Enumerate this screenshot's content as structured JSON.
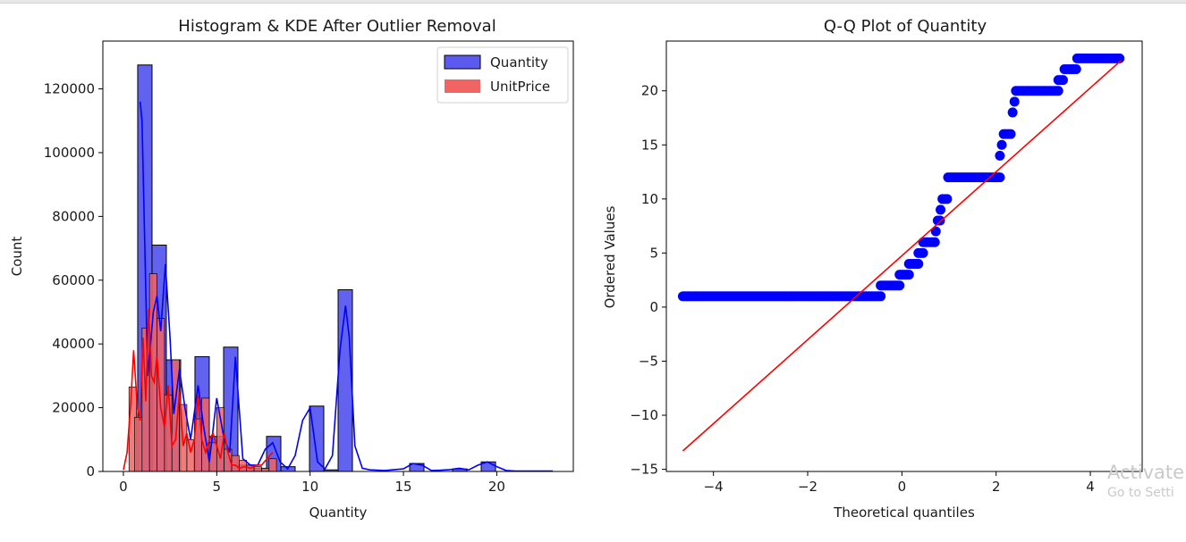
{
  "colors": {
    "quantity_fill": "#5a5af0",
    "quantity_line": "#0000ff",
    "unitprice_fill": "#f06464",
    "unitprice_line": "#ff0000",
    "qq_points": "#0000ff",
    "qq_line": "#ff0000"
  },
  "watermark": {
    "line1": "Activate",
    "line2": "Go to Setti"
  },
  "chart_data": [
    {
      "type": "bar",
      "subtype": "histogram+kde",
      "title": "Histogram & KDE After Outlier Removal",
      "xlabel": "Quantity",
      "ylabel": "Count",
      "xlim": [
        -1.1,
        24.1
      ],
      "ylim": [
        0,
        135000
      ],
      "xticks": [
        0,
        5,
        10,
        15,
        20
      ],
      "yticks": [
        0,
        20000,
        40000,
        60000,
        80000,
        100000,
        120000
      ],
      "legend": {
        "position": "top-right",
        "entries": [
          "Quantity",
          "UnitPrice"
        ]
      },
      "bin_width": 0.767,
      "series": [
        {
          "name": "Quantity",
          "color": "#5a5af0",
          "bins": [
            {
              "x": 0.767,
              "count": 127500
            },
            {
              "x": 1.533,
              "count": 71000
            },
            {
              "x": 2.3,
              "count": 35000
            },
            {
              "x": 3.833,
              "count": 36000
            },
            {
              "x": 4.6,
              "count": 11000
            },
            {
              "x": 5.367,
              "count": 39000
            },
            {
              "x": 6.133,
              "count": 2000
            },
            {
              "x": 6.9,
              "count": 1000
            },
            {
              "x": 7.667,
              "count": 11000
            },
            {
              "x": 8.433,
              "count": 1500
            },
            {
              "x": 9.967,
              "count": 20500
            },
            {
              "x": 10.733,
              "count": 500
            },
            {
              "x": 11.5,
              "count": 57000
            },
            {
              "x": 15.333,
              "count": 2500
            },
            {
              "x": 17.633,
              "count": 800
            },
            {
              "x": 19.167,
              "count": 3000
            }
          ],
          "kde": {
            "x": [
              0.9,
              1.0,
              1.3,
              1.6,
              1.8,
              2.0,
              2.25,
              2.5,
              2.7,
              3.0,
              3.3,
              3.6,
              4.0,
              4.3,
              4.6,
              5.0,
              5.4,
              5.7,
              6.0,
              6.4,
              6.8,
              7.2,
              7.6,
              8.0,
              8.4,
              8.8,
              9.2,
              9.6,
              10.0,
              10.4,
              10.8,
              11.2,
              11.6,
              11.9,
              12.1,
              12.4,
              12.8,
              13.2,
              14.0,
              15.0,
              15.5,
              16.0,
              16.5,
              17.0,
              17.5,
              18.0,
              18.5,
              19.0,
              19.5,
              20.0,
              20.5,
              21.0,
              22.0,
              23.0
            ],
            "y": [
              116000,
              110000,
              30000,
              50000,
              55000,
              44000,
              65000,
              42000,
              18000,
              32000,
              20000,
              10000,
              27000,
              14000,
              3000,
              23000,
              10000,
              6000,
              36000,
              4000,
              2000,
              2000,
              7000,
              9000,
              3000,
              800,
              5000,
              16000,
              20000,
              3000,
              800,
              5000,
              38000,
              52000,
              42000,
              8000,
              1000,
              500,
              300,
              800,
              2500,
              2000,
              300,
              400,
              600,
              1000,
              500,
              2000,
              3000,
              1500,
              300,
              100,
              100,
              100
            ]
          }
        },
        {
          "name": "UnitPrice",
          "color": "#f06464",
          "bins": [
            {
              "x": 0.3,
              "count": 26500
            },
            {
              "x": 0.6,
              "count": 17000
            },
            {
              "x": 1.0,
              "count": 45000
            },
            {
              "x": 1.4,
              "count": 62000
            },
            {
              "x": 1.8,
              "count": 48000
            },
            {
              "x": 2.2,
              "count": 24000
            },
            {
              "x": 2.6,
              "count": 35000
            },
            {
              "x": 3.0,
              "count": 21000
            },
            {
              "x": 3.4,
              "count": 10000
            },
            {
              "x": 3.8,
              "count": 16500
            },
            {
              "x": 4.2,
              "count": 23000
            },
            {
              "x": 4.6,
              "count": 9000
            },
            {
              "x": 5.0,
              "count": 20000
            },
            {
              "x": 5.4,
              "count": 7000
            },
            {
              "x": 5.8,
              "count": 5000
            },
            {
              "x": 6.2,
              "count": 3500
            },
            {
              "x": 6.6,
              "count": 2000
            },
            {
              "x": 7.0,
              "count": 1500
            },
            {
              "x": 7.4,
              "count": 1000
            },
            {
              "x": 7.8,
              "count": 4000
            }
          ],
          "kde": {
            "x": [
              0.0,
              0.2,
              0.4,
              0.55,
              0.75,
              0.9,
              1.05,
              1.2,
              1.35,
              1.5,
              1.65,
              1.8,
              2.0,
              2.2,
              2.4,
              2.6,
              2.8,
              3.0,
              3.2,
              3.4,
              3.6,
              3.8,
              4.0,
              4.2,
              4.4,
              4.6,
              4.8,
              5.0,
              5.2,
              5.4,
              5.6,
              5.8,
              6.0,
              6.2,
              6.5,
              6.8,
              7.1,
              7.4,
              7.7,
              8.0
            ],
            "y": [
              500,
              6000,
              22000,
              38000,
              20000,
              16000,
              42000,
              22000,
              51000,
              30000,
              28000,
              36000,
              20000,
              14000,
              27000,
              8000,
              10000,
              25000,
              8000,
              12000,
              6000,
              10000,
              24000,
              10000,
              6000,
              10000,
              12000,
              8000,
              4000,
              12000,
              6000,
              2000,
              2000,
              1000,
              1500,
              1000,
              2000,
              2000,
              4000,
              6000
            ]
          }
        }
      ]
    },
    {
      "type": "scatter",
      "subtype": "qq-plot",
      "title": "Q-Q Plot of Quantity",
      "xlabel": "Theoretical quantiles",
      "ylabel": "Ordered Values",
      "xlim": [
        -5.0,
        5.1
      ],
      "ylim": [
        -15.2,
        24.6
      ],
      "xticks": [
        -4,
        -2,
        0,
        2,
        4
      ],
      "yticks": [
        -15,
        -10,
        -5,
        0,
        5,
        10,
        15,
        20
      ],
      "fit_line": {
        "x": [
          -4.65,
          4.65
        ],
        "y": [
          -13.3,
          22.8
        ]
      },
      "steps": [
        {
          "value": 1,
          "from": -4.65,
          "to": -0.45
        },
        {
          "value": 2,
          "from": -0.45,
          "to": -0.05
        },
        {
          "value": 3,
          "from": -0.05,
          "to": 0.15
        },
        {
          "value": 4,
          "from": 0.15,
          "to": 0.35
        },
        {
          "value": 5,
          "from": 0.35,
          "to": 0.45
        },
        {
          "value": 6,
          "from": 0.45,
          "to": 0.72
        },
        {
          "value": 7,
          "from": 0.72,
          "to": 0.76
        },
        {
          "value": 8,
          "from": 0.76,
          "to": 0.82
        },
        {
          "value": 9,
          "from": 0.82,
          "to": 0.86
        },
        {
          "value": 10,
          "from": 0.86,
          "to": 0.98
        },
        {
          "value": 12,
          "from": 0.98,
          "to": 2.08
        },
        {
          "value": 14,
          "from": 2.08,
          "to": 2.12
        },
        {
          "value": 15,
          "from": 2.12,
          "to": 2.16
        },
        {
          "value": 16,
          "from": 2.16,
          "to": 2.35
        },
        {
          "value": 18,
          "from": 2.35,
          "to": 2.39
        },
        {
          "value": 19,
          "from": 2.39,
          "to": 2.42
        },
        {
          "value": 20,
          "from": 2.42,
          "to": 3.32
        },
        {
          "value": 21,
          "from": 3.32,
          "to": 3.45
        },
        {
          "value": 22,
          "from": 3.45,
          "to": 3.72
        },
        {
          "value": 23,
          "from": 3.72,
          "to": 4.65
        }
      ]
    }
  ]
}
